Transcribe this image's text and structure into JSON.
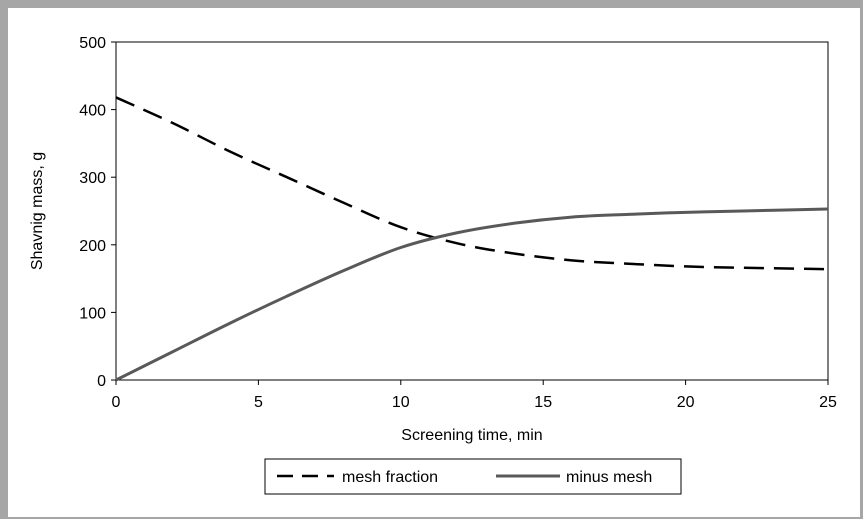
{
  "chart_data": {
    "type": "line",
    "xlabel": "Screening time, min",
    "ylabel": "Shavnig mass, g",
    "xlim": [
      0,
      25
    ],
    "ylim": [
      0,
      500
    ],
    "xticks": [
      0,
      5,
      10,
      15,
      20,
      25
    ],
    "yticks": [
      0,
      100,
      200,
      300,
      400,
      500
    ],
    "grid": false,
    "legend_position": "bottom",
    "series": [
      {
        "name": "mesh fraction",
        "style": "dashed",
        "color": "#000000",
        "x": [
          0,
          2,
          4,
          6,
          8,
          10,
          12,
          14,
          16,
          18,
          20,
          22,
          25
        ],
        "y": [
          418,
          380,
          338,
          300,
          262,
          226,
          202,
          187,
          177,
          172,
          168,
          166,
          164
        ]
      },
      {
        "name": "minus mesh",
        "style": "solid",
        "color": "#595959",
        "x": [
          0,
          2,
          4,
          6,
          8,
          10,
          12,
          14,
          16,
          18,
          20,
          22,
          25
        ],
        "y": [
          0,
          42,
          84,
          124,
          162,
          196,
          218,
          232,
          241,
          245,
          248,
          250,
          253
        ]
      }
    ]
  }
}
